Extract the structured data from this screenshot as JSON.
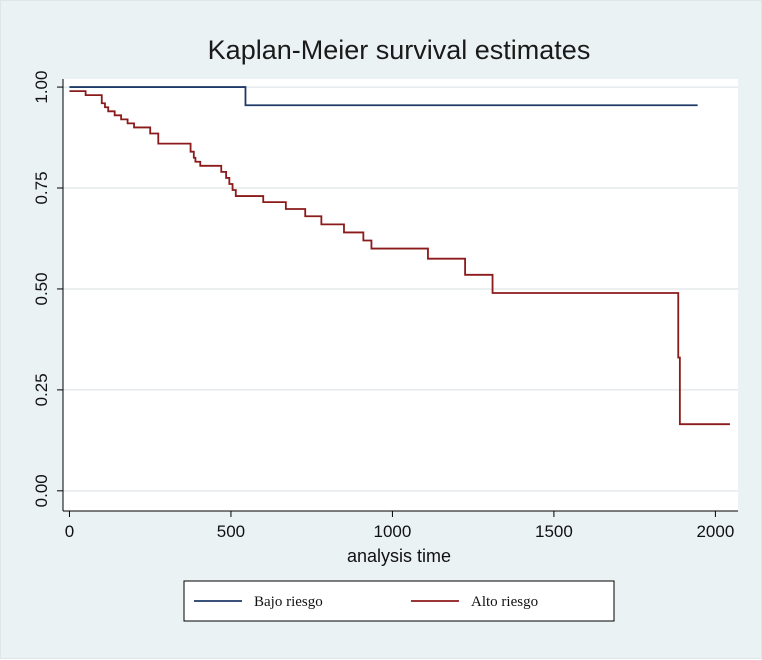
{
  "chart_data": {
    "type": "line",
    "step": true,
    "title": "Kaplan-Meier survival estimates",
    "xlabel": "analysis time",
    "ylabel": "",
    "xlim": [
      -20,
      2070
    ],
    "ylim": [
      -0.05,
      1.02
    ],
    "xticks": [
      0,
      500,
      1000,
      1500,
      2000
    ],
    "xtick_labels": [
      "0",
      "500",
      "1000",
      "1500",
      "2000"
    ],
    "yticks": [
      0,
      0.25,
      0.5,
      0.75,
      1
    ],
    "ytick_labels": [
      "0.00",
      "0.25",
      "0.50",
      "0.75",
      "1.00"
    ],
    "grid": true,
    "legend": "bottom",
    "series": [
      {
        "name": "Bajo riesgo",
        "color": "#1f3a68",
        "x": [
          0,
          545,
          1945
        ],
        "y": [
          1.0,
          0.955,
          0.955
        ]
      },
      {
        "name": "Alto riesgo",
        "color": "#8b1a1a",
        "x": [
          0,
          50,
          100,
          110,
          120,
          140,
          160,
          180,
          200,
          250,
          275,
          375,
          385,
          390,
          405,
          470,
          485,
          495,
          505,
          515,
          600,
          670,
          730,
          780,
          850,
          910,
          935,
          1110,
          1225,
          1310,
          1885,
          1890,
          2045
        ],
        "y": [
          0.99,
          0.98,
          0.96,
          0.95,
          0.94,
          0.93,
          0.92,
          0.91,
          0.9,
          0.885,
          0.86,
          0.84,
          0.825,
          0.815,
          0.805,
          0.79,
          0.775,
          0.76,
          0.745,
          0.73,
          0.715,
          0.698,
          0.68,
          0.66,
          0.64,
          0.62,
          0.6,
          0.575,
          0.535,
          0.49,
          0.33,
          0.165,
          0.165
        ]
      }
    ]
  }
}
